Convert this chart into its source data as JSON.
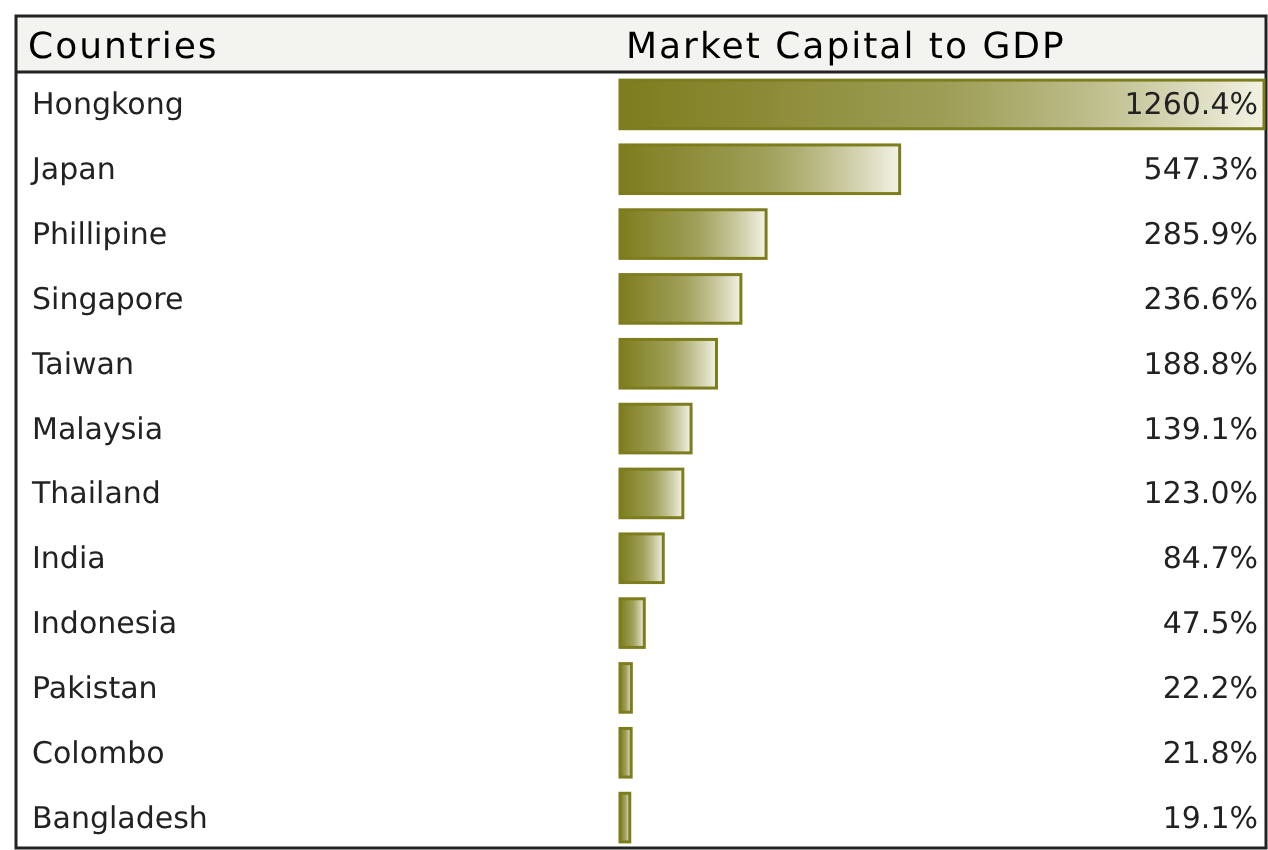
{
  "chart_data": {
    "type": "bar",
    "orientation": "horizontal",
    "title": "Market Capital to GDP",
    "ylabel": "Countries",
    "categories": [
      "Hongkong",
      "Japan",
      "Phillipine",
      "Singapore",
      "Taiwan",
      "Malaysia",
      "Thailand",
      "India",
      "Indonesia",
      "Pakistan",
      "Colombo",
      "Bangladesh"
    ],
    "values": [
      1260.4,
      547.3,
      285.9,
      236.6,
      188.8,
      139.1,
      123.0,
      84.7,
      47.5,
      22.2,
      21.8,
      19.1
    ],
    "value_labels": [
      "1260.4%",
      "547.3%",
      "285.9%",
      "236.6%",
      "188.8%",
      "139.1%",
      "123.0%",
      "84.7%",
      "47.5%",
      "22.2%",
      "21.8%",
      "19.1%"
    ],
    "color": "#7d7d1e"
  }
}
